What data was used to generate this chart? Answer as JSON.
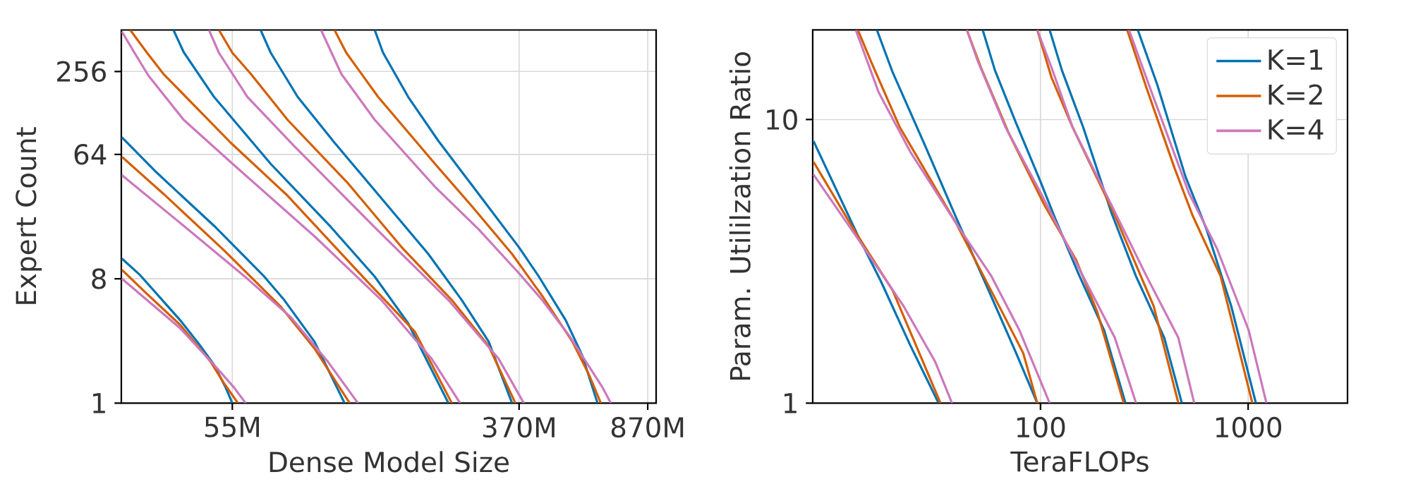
{
  "chart_data": [
    {
      "type": "line",
      "xlabel": "Dense Model Size",
      "ylabel": "Expert Count",
      "log": "xy",
      "grid": true,
      "xlim": [
        26.3,
        920
      ],
      "ylim": [
        1,
        512
      ],
      "xticks": [
        {
          "value": 55,
          "label": "55M"
        },
        {
          "value": 370,
          "label": "370M"
        },
        {
          "value": 870,
          "label": "870M"
        }
      ],
      "yticks": [
        1,
        8,
        64,
        256
      ],
      "series": [
        {
          "color": "#0173b2",
          "x": [
            26.4,
            29.8,
            38.9,
            44.0,
            48.7,
            52.6,
            55
          ],
          "values": [
            11.2,
            8.5,
            4.0,
            2.7,
            1.9,
            1.3,
            1
          ]
        },
        {
          "color": "#d55e00",
          "x": [
            26.4,
            31.2,
            38.9,
            47.6,
            52.0,
            57.1
          ],
          "values": [
            9.3,
            6.2,
            3.7,
            2.0,
            1.4,
            1
          ]
        },
        {
          "color": "#cc78bc",
          "x": [
            26.4,
            31.2,
            38.9,
            48.7,
            55.6,
            60.1
          ],
          "values": [
            8.0,
            5.6,
            3.5,
            1.9,
            1.3,
            1
          ]
        },
        {
          "color": "#0173b2",
          "x": [
            26.4,
            33.3,
            48.7,
            68.0,
            77.7,
            94.9,
            116.0
          ],
          "values": [
            85.0,
            47.1,
            19.4,
            8.3,
            5.6,
            2.8,
            1
          ]
        },
        {
          "color": "#d55e00",
          "x": [
            26.4,
            34.8,
            52.0,
            76.0,
            94.9,
            120.0
          ],
          "values": [
            61.4,
            33.1,
            12.9,
            5.0,
            2.5,
            1
          ]
        },
        {
          "color": "#cc78bc",
          "x": [
            26.4,
            39.8,
            60.8,
            81.2,
            103.8,
            126.8
          ],
          "values": [
            45.2,
            19.4,
            8.0,
            4.2,
            2.0,
            1
          ]
        },
        {
          "color": "#0173b2",
          "x": [
            37.2,
            39.8,
            48.7,
            71.0,
            106.1,
            141.7,
            177.0,
            231.3
          ],
          "values": [
            512,
            354.2,
            167.4,
            54.6,
            18.9,
            8.3,
            3.8,
            1
          ]
        },
        {
          "color": "#d55e00",
          "x": [
            27.9,
            31.2,
            34.8,
            54.4,
            79.4,
            132.6,
            185.1,
            236.6
          ],
          "values": [
            512,
            350,
            245.6,
            77.8,
            32.1,
            8.0,
            3.3,
            1
          ]
        },
        {
          "color": "#cc78bc",
          "x": [
            26.4,
            28.5,
            31.5,
            39.8,
            54.4,
            94.9,
            148.2,
            206.9,
            250.0
          ],
          "values": [
            498.7,
            360.6,
            238.5,
            114.1,
            56.2,
            16.3,
            5.6,
            2.1,
            1
          ]
        },
        {
          "color": "#0173b2",
          "x": [
            66.4,
            71.0,
            84.9,
            108.5,
            141.7,
            202.4,
            252.8,
            302.2,
            353.1
          ],
          "values": [
            512,
            350,
            167.4,
            77.8,
            35.1,
            12.1,
            5.6,
            2.8,
            1
          ]
        },
        {
          "color": "#d55e00",
          "x": [
            50.3,
            55,
            62.2,
            79.4,
            118.6,
            169.3,
            236.6,
            302.2,
            361.1
          ],
          "values": [
            512,
            350,
            245.6,
            114.1,
            39.5,
            13.6,
            5.6,
            2.6,
            1
          ]
        },
        {
          "color": "#cc78bc",
          "x": [
            47.1,
            50.3,
            60.8,
            83.1,
            141.7,
            231.3,
            323.0,
            381.8
          ],
          "values": [
            512,
            350,
            167.4,
            73.3,
            18.9,
            5.6,
            2.1,
            1
          ]
        },
        {
          "color": "#0173b2",
          "x": [
            141.7,
            149.8,
            177.0,
            216.4,
            270.3,
            369.2,
            421.9,
            504.4,
            563.8,
            623.1
          ],
          "values": [
            512,
            350,
            167.4,
            80.1,
            38.3,
            13.6,
            8.3,
            4.0,
            2.2,
            1
          ]
        },
        {
          "color": "#d55e00",
          "x": [
            108.5,
            117.3,
            144.9,
            211.6,
            270.3,
            353.1,
            431.5,
            527.2,
            589.5,
            637.1
          ],
          "values": [
            512,
            350,
            167.4,
            54.6,
            26.9,
            12.1,
            6.0,
            2.8,
            1.6,
            1
          ]
        },
        {
          "color": "#cc78bc",
          "x": [
            99.2,
            113.5,
            141.7,
            211.6,
            282.6,
            369.2,
            431.5,
            515.7,
            644.2,
            680.8
          ],
          "values": [
            512,
            245.6,
            114.1,
            37.2,
            18.3,
            8.8,
            5.6,
            3.1,
            1.3,
            1
          ]
        }
      ]
    },
    {
      "type": "line",
      "xlabel": "TeraFLOPs",
      "ylabel": "Param. Utililzation Ratio",
      "log": "xy",
      "grid": true,
      "legend": "top right",
      "xlim": [
        8,
        3010
      ],
      "ylim": [
        1,
        20.7
      ],
      "xticks": [
        100,
        1000
      ],
      "yticks": [
        1,
        10
      ],
      "series": [
        {
          "name": "K=1",
          "color": "#0173b2",
          "x": [
            8.07,
            13.2,
            17.0,
            23.6,
            32.3
          ],
          "values": [
            8.4,
            3.9,
            2.7,
            1.6,
            1
          ]
        },
        {
          "name": "K=2",
          "color": "#d55e00",
          "x": [
            8.07,
            12.6,
            19.4,
            26.1,
            33.0
          ],
          "values": [
            7.1,
            4.1,
            2.5,
            1.5,
            1
          ]
        },
        {
          "name": "K=4",
          "color": "#cc78bc",
          "x": [
            8.07,
            13.2,
            21.9,
            31.1,
            37.5
          ],
          "values": [
            6.4,
            3.8,
            2.2,
            1.4,
            1
          ]
        },
        {
          "color": "#0173b2",
          "x": [
            16.3,
            19.4,
            27.6,
            39.3,
            53.7,
            76.4,
            96.5
          ],
          "values": [
            20.7,
            14.7,
            8.2,
            4.5,
            2.7,
            1.5,
            1
          ]
        },
        {
          "color": "#d55e00",
          "x": [
            13.2,
            15.4,
            21.0,
            39.3,
            65.3,
            82.6,
            96.5
          ],
          "values": [
            20.7,
            15.8,
            9.4,
            4.3,
            2.1,
            1.5,
            1
          ]
        },
        {
          "color": "#cc78bc",
          "x": [
            12.9,
            16.6,
            23.6,
            39.3,
            58.1,
            79.4,
            110.7
          ],
          "values": [
            20.7,
            12.5,
            7.7,
            4.3,
            2.8,
            1.8,
            1
          ]
        },
        {
          "color": "#0173b2",
          "x": [
            52.7,
            60.4,
            76.4,
            100.4,
            117.4,
            154.3,
            202.9,
            256.6
          ],
          "values": [
            20.7,
            14.9,
            9.7,
            6.0,
            4.5,
            2.8,
            1.8,
            1
          ]
        },
        {
          "color": "#d55e00",
          "x": [
            44.2,
            51.6,
            70.6,
            104.4,
            148.4,
            187.6,
            251.6
          ],
          "values": [
            20.7,
            15.3,
            8.9,
            5.0,
            3.2,
            2.1,
            1
          ]
        },
        {
          "color": "#cc78bc",
          "x": [
            44.2,
            49.7,
            67.9,
            100.4,
            160.5,
            228.1,
            288.5
          ],
          "values": [
            20.7,
            16.2,
            9.4,
            5.5,
            2.8,
            1.7,
            1
          ]
        },
        {
          "color": "#0173b2",
          "x": [
            110.7,
            126.9,
            160.5,
            219.4,
            288.5,
            394.5,
            479.6
          ],
          "values": [
            20.7,
            14.9,
            9.4,
            4.7,
            2.8,
            1.7,
            1
          ]
        },
        {
          "color": "#d55e00",
          "x": [
            96.5,
            112.9,
            142.7,
            228.1,
            350.8,
            461.3
          ],
          "values": [
            20.7,
            14.1,
            9.4,
            4.6,
            2.2,
            1
          ]
        },
        {
          "color": "#cc78bc",
          "x": [
            96.5,
            112.9,
            142.7,
            211.0,
            324.3,
            461.3,
            550.0
          ],
          "values": [
            20.7,
            15.3,
            9.4,
            5.3,
            2.8,
            1.7,
            1
          ]
        },
        {
          "color": "#0173b2",
          "x": [
            294.2,
            364.8,
            498.8,
            630.6,
            828.8,
            1090
          ],
          "values": [
            20.7,
            13.3,
            6.3,
            4.1,
            2.2,
            1
          ]
        },
        {
          "color": "#d55e00",
          "x": [
            261.6,
            324.3,
            443.6,
            539.3,
            737.2,
            1048
          ],
          "values": [
            20.7,
            12.9,
            6.7,
            4.6,
            2.8,
            1
          ]
        },
        {
          "color": "#cc78bc",
          "x": [
            266.7,
            337.3,
            518.7,
            708.9,
            1008,
            1225
          ],
          "values": [
            20.7,
            12.9,
            5.5,
            3.5,
            1.8,
            1
          ]
        }
      ]
    }
  ]
}
